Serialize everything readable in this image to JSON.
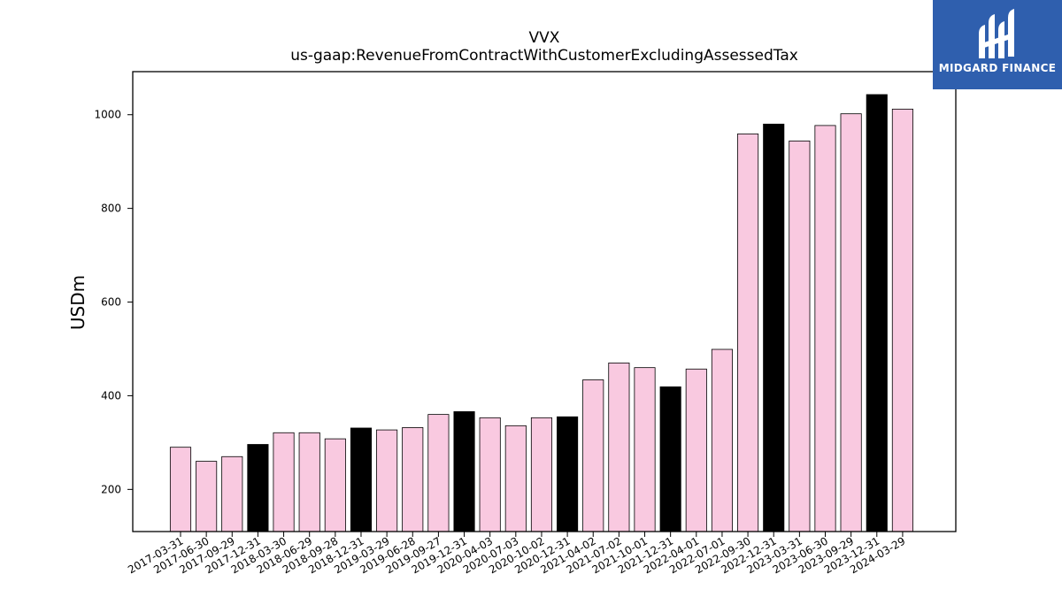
{
  "brand": {
    "name": "MIDGARD FINANCE",
    "icon": "midgard-logo-icon",
    "background": "#2f5fae"
  },
  "colors": {
    "quarter_bar": "#f9c9e0",
    "year_end_bar": "#000000",
    "edge": "#000000"
  },
  "chart_data": {
    "type": "bar",
    "title": "VVX",
    "subtitle": "us-gaap:RevenueFromContractWithCustomerExcludingAssessedTax",
    "xlabel": "",
    "ylabel": "USDm",
    "ylim": [
      110,
      1092
    ],
    "yticks": [
      200,
      400,
      600,
      800,
      1000
    ],
    "grid": false,
    "categories": [
      "2017-03-31",
      "2017-06-30",
      "2017-09-29",
      "2017-12-31",
      "2018-03-30",
      "2018-06-29",
      "2018-09-28",
      "2018-12-31",
      "2019-03-29",
      "2019-06-28",
      "2019-09-27",
      "2019-12-31",
      "2020-04-03",
      "2020-07-03",
      "2020-10-02",
      "2020-12-31",
      "2021-04-02",
      "2021-07-02",
      "2021-10-01",
      "2021-12-31",
      "2022-04-01",
      "2022-07-01",
      "2022-09-30",
      "2022-12-31",
      "2023-03-31",
      "2023-06-30",
      "2023-09-29",
      "2023-12-31",
      "2024-03-29"
    ],
    "values": [
      290,
      260,
      270,
      296,
      321,
      321,
      308,
      331,
      327,
      332,
      360,
      366,
      353,
      336,
      353,
      355,
      434,
      470,
      460,
      419,
      457,
      499,
      959,
      980,
      944,
      977,
      1002,
      1043,
      1012
    ],
    "highlight": [
      false,
      false,
      false,
      true,
      false,
      false,
      false,
      true,
      false,
      false,
      false,
      true,
      false,
      false,
      false,
      true,
      false,
      false,
      false,
      true,
      false,
      false,
      false,
      true,
      false,
      false,
      false,
      true,
      false
    ]
  }
}
